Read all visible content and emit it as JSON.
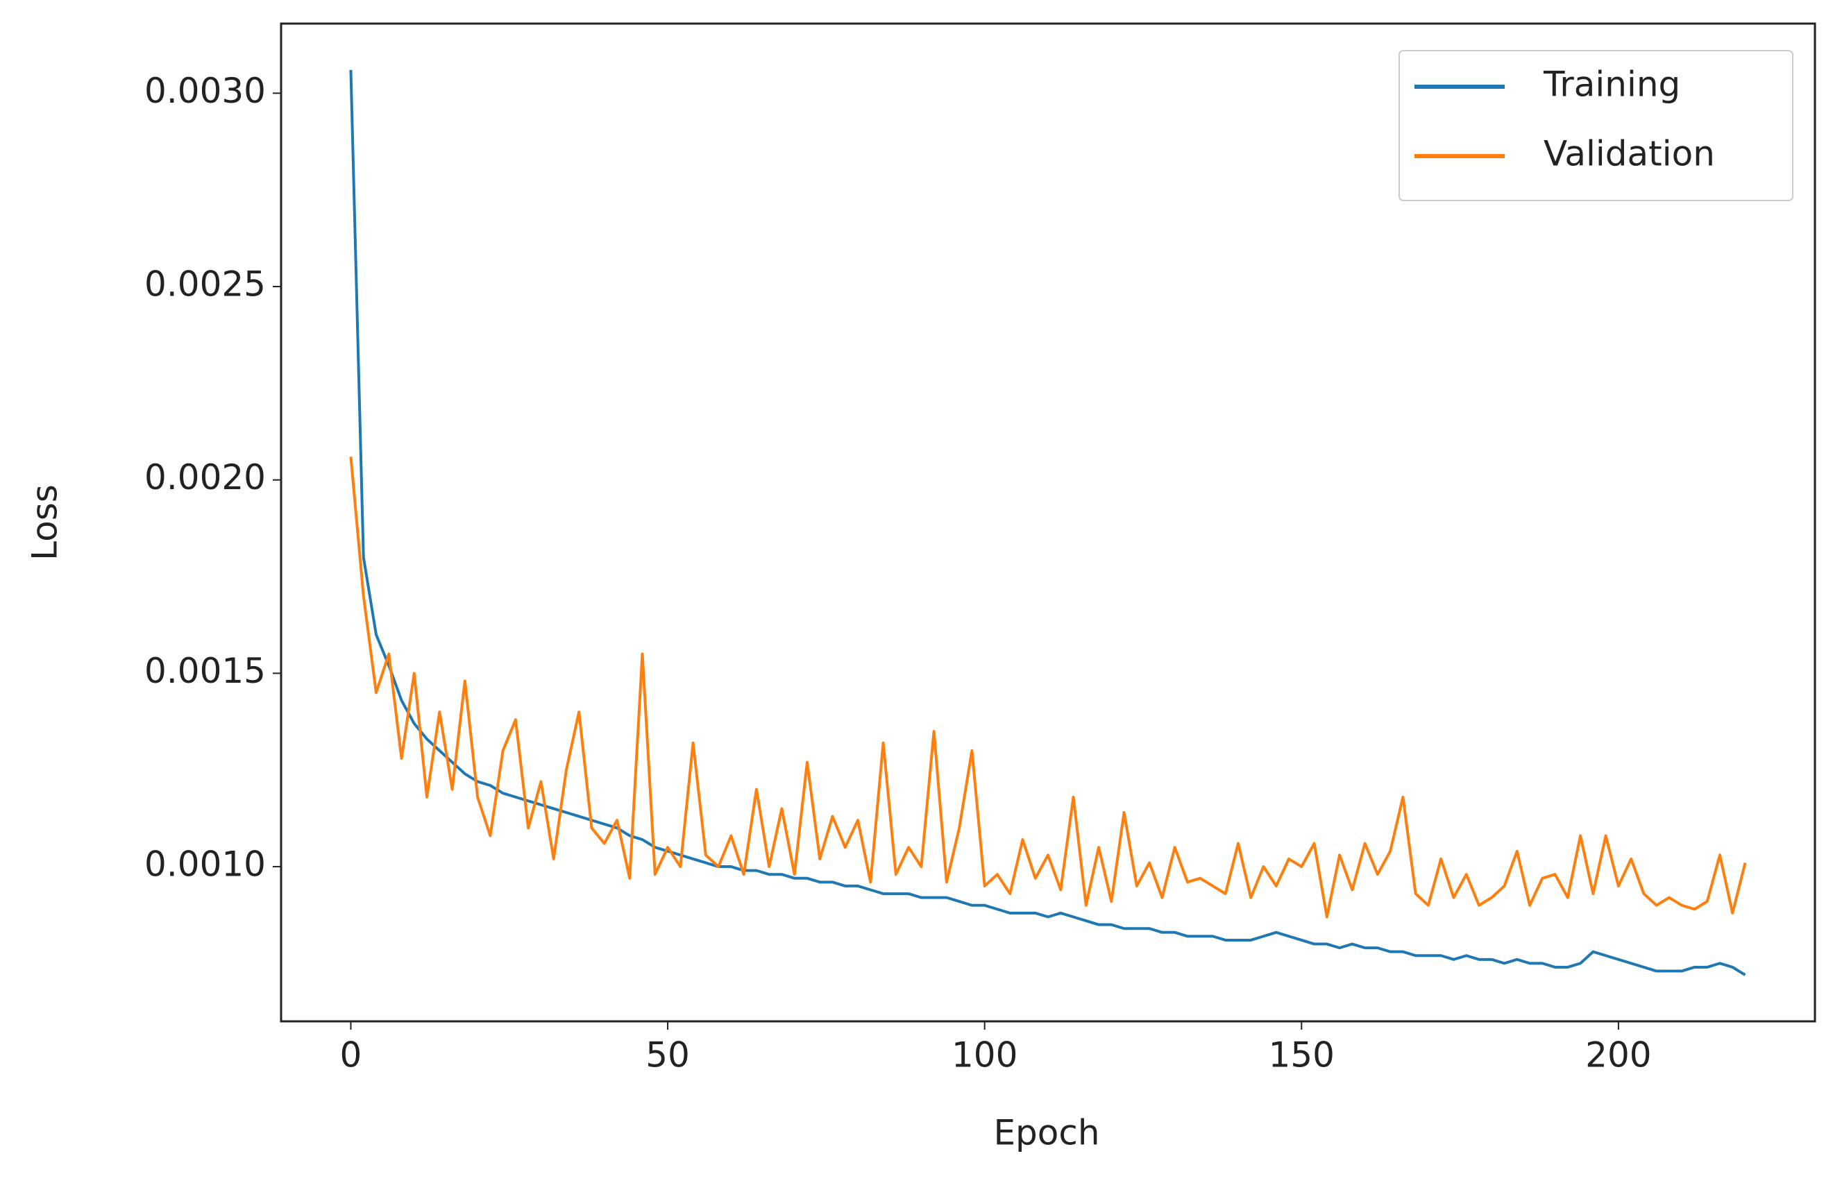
{
  "chart_data": {
    "type": "line",
    "xlabel": "Epoch",
    "ylabel": "Loss",
    "x": [
      0,
      2,
      4,
      6,
      8,
      10,
      12,
      14,
      16,
      18,
      20,
      22,
      24,
      26,
      28,
      30,
      32,
      34,
      36,
      38,
      40,
      42,
      44,
      46,
      48,
      50,
      52,
      54,
      56,
      58,
      60,
      62,
      64,
      66,
      68,
      70,
      72,
      74,
      76,
      78,
      80,
      82,
      84,
      86,
      88,
      90,
      92,
      94,
      96,
      98,
      100,
      102,
      104,
      106,
      108,
      110,
      112,
      114,
      116,
      118,
      120,
      122,
      124,
      126,
      128,
      130,
      132,
      134,
      136,
      138,
      140,
      142,
      144,
      146,
      148,
      150,
      152,
      154,
      156,
      158,
      160,
      162,
      164,
      166,
      168,
      170,
      172,
      174,
      176,
      178,
      180,
      182,
      184,
      186,
      188,
      190,
      192,
      194,
      196,
      198,
      200,
      202,
      204,
      206,
      208,
      210,
      212,
      214,
      216,
      218,
      220
    ],
    "series": [
      {
        "name": "Training",
        "color": "#1f77b4",
        "values": [
          0.00306,
          0.0018,
          0.0016,
          0.00152,
          0.00143,
          0.00137,
          0.00133,
          0.0013,
          0.00127,
          0.00124,
          0.00122,
          0.00121,
          0.00119,
          0.00118,
          0.00117,
          0.00116,
          0.00115,
          0.00114,
          0.00113,
          0.00112,
          0.00111,
          0.0011,
          0.00108,
          0.00107,
          0.00105,
          0.00104,
          0.00103,
          0.00102,
          0.00101,
          0.001,
          0.001,
          0.00099,
          0.00099,
          0.00098,
          0.00098,
          0.00097,
          0.00097,
          0.00096,
          0.00096,
          0.00095,
          0.00095,
          0.00094,
          0.00093,
          0.00093,
          0.00093,
          0.00092,
          0.00092,
          0.00092,
          0.00091,
          0.0009,
          0.0009,
          0.00089,
          0.00088,
          0.00088,
          0.00088,
          0.00087,
          0.00088,
          0.00087,
          0.00086,
          0.00085,
          0.00085,
          0.00084,
          0.00084,
          0.00084,
          0.00083,
          0.00083,
          0.00082,
          0.00082,
          0.00082,
          0.00081,
          0.00081,
          0.00081,
          0.00082,
          0.00083,
          0.00082,
          0.00081,
          0.0008,
          0.0008,
          0.00079,
          0.0008,
          0.00079,
          0.00079,
          0.00078,
          0.00078,
          0.00077,
          0.00077,
          0.00077,
          0.00076,
          0.00077,
          0.00076,
          0.00076,
          0.00075,
          0.00076,
          0.00075,
          0.00075,
          0.00074,
          0.00074,
          0.00075,
          0.00078,
          0.00077,
          0.00076,
          0.00075,
          0.00074,
          0.00073,
          0.00073,
          0.00073,
          0.00074,
          0.00074,
          0.00075,
          0.00074,
          0.00072
        ]
      },
      {
        "name": "Validation",
        "color": "#ff7f0e",
        "values": [
          0.00206,
          0.0017,
          0.00145,
          0.00155,
          0.00128,
          0.0015,
          0.00118,
          0.0014,
          0.0012,
          0.00148,
          0.00118,
          0.00108,
          0.0013,
          0.00138,
          0.0011,
          0.00122,
          0.00102,
          0.00125,
          0.0014,
          0.0011,
          0.00106,
          0.00112,
          0.00097,
          0.00155,
          0.00098,
          0.00105,
          0.001,
          0.00132,
          0.00103,
          0.001,
          0.00108,
          0.00098,
          0.0012,
          0.001,
          0.00115,
          0.00098,
          0.00127,
          0.00102,
          0.00113,
          0.00105,
          0.00112,
          0.00096,
          0.00132,
          0.00098,
          0.00105,
          0.001,
          0.00135,
          0.00096,
          0.0011,
          0.0013,
          0.00095,
          0.00098,
          0.00093,
          0.00107,
          0.00097,
          0.00103,
          0.00094,
          0.00118,
          0.0009,
          0.00105,
          0.00091,
          0.00114,
          0.00095,
          0.00101,
          0.00092,
          0.00105,
          0.00096,
          0.00097,
          0.00095,
          0.00093,
          0.00106,
          0.00092,
          0.001,
          0.00095,
          0.00102,
          0.001,
          0.00106,
          0.00087,
          0.00103,
          0.00094,
          0.00106,
          0.00098,
          0.00104,
          0.00118,
          0.00093,
          0.0009,
          0.00102,
          0.00092,
          0.00098,
          0.0009,
          0.00092,
          0.00095,
          0.00104,
          0.0009,
          0.00097,
          0.00098,
          0.00092,
          0.00108,
          0.00093,
          0.00108,
          0.00095,
          0.00102,
          0.00093,
          0.0009,
          0.00092,
          0.0009,
          0.00089,
          0.00091,
          0.00103,
          0.00088,
          0.00101
        ]
      }
    ],
    "xlim": [
      -11,
      231
    ],
    "xticks": [
      0,
      50,
      100,
      150,
      200
    ],
    "ylim": [
      0.0006,
      0.00318
    ],
    "yticks": [
      {
        "value": 0.001,
        "label": "0.0010"
      },
      {
        "value": 0.0015,
        "label": "0.0015"
      },
      {
        "value": 0.002,
        "label": "0.0020"
      },
      {
        "value": 0.0025,
        "label": "0.0025"
      },
      {
        "value": 0.003,
        "label": "0.0030"
      }
    ],
    "legend": "upper right"
  }
}
